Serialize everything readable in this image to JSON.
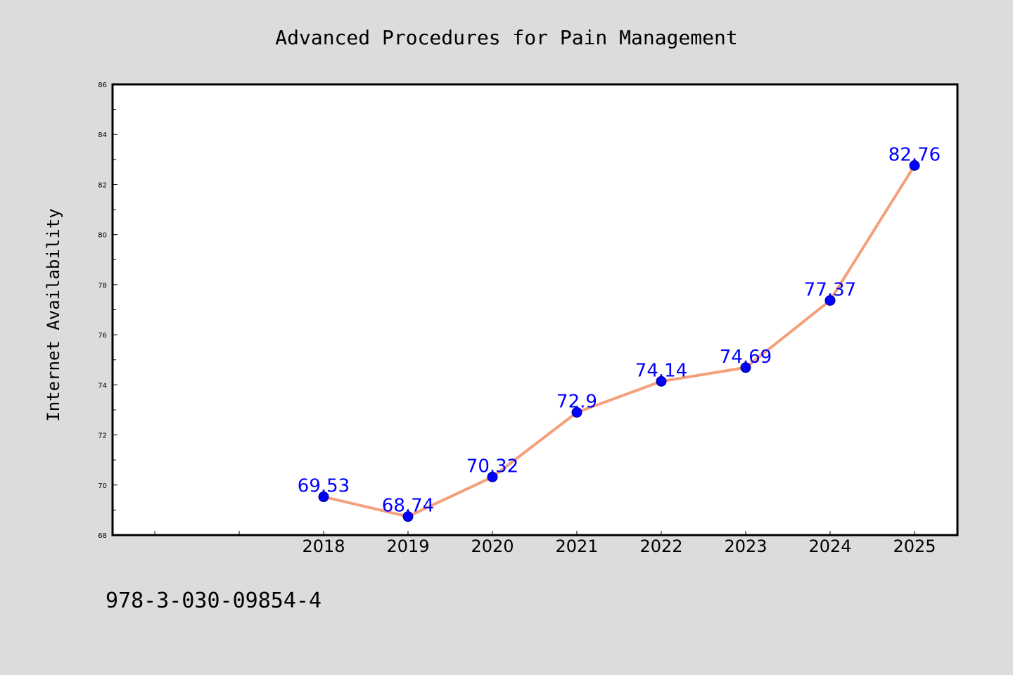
{
  "chart_data": {
    "type": "line",
    "title": "Advanced Procedures for Pain Management",
    "xlabel": "",
    "ylabel": "Internet Availability",
    "x": [
      "2018",
      "2019",
      "2020",
      "2021",
      "2022",
      "2023",
      "2024",
      "2025"
    ],
    "series": [
      {
        "values": [
          69.53,
          68.74,
          70.32,
          72.9,
          74.14,
          74.69,
          77.37,
          82.76
        ],
        "labels": [
          "69.53",
          "68.74",
          "70.32",
          "72.9",
          "74.14",
          "74.69",
          "77.37",
          "82.76"
        ],
        "line_color": "#f4a07a",
        "marker_color": "#0000ff"
      }
    ],
    "ylim": [
      68,
      86
    ],
    "yticks": [
      68,
      70,
      72,
      74,
      76,
      78,
      80,
      82,
      84,
      86
    ],
    "grid": false,
    "legend": false,
    "label_color": "#0000ff"
  },
  "footer": {
    "isbn": "978-3-030-09854-4"
  },
  "colors": {
    "background": "#dcdcdc",
    "plot_background": "#ffffff"
  }
}
